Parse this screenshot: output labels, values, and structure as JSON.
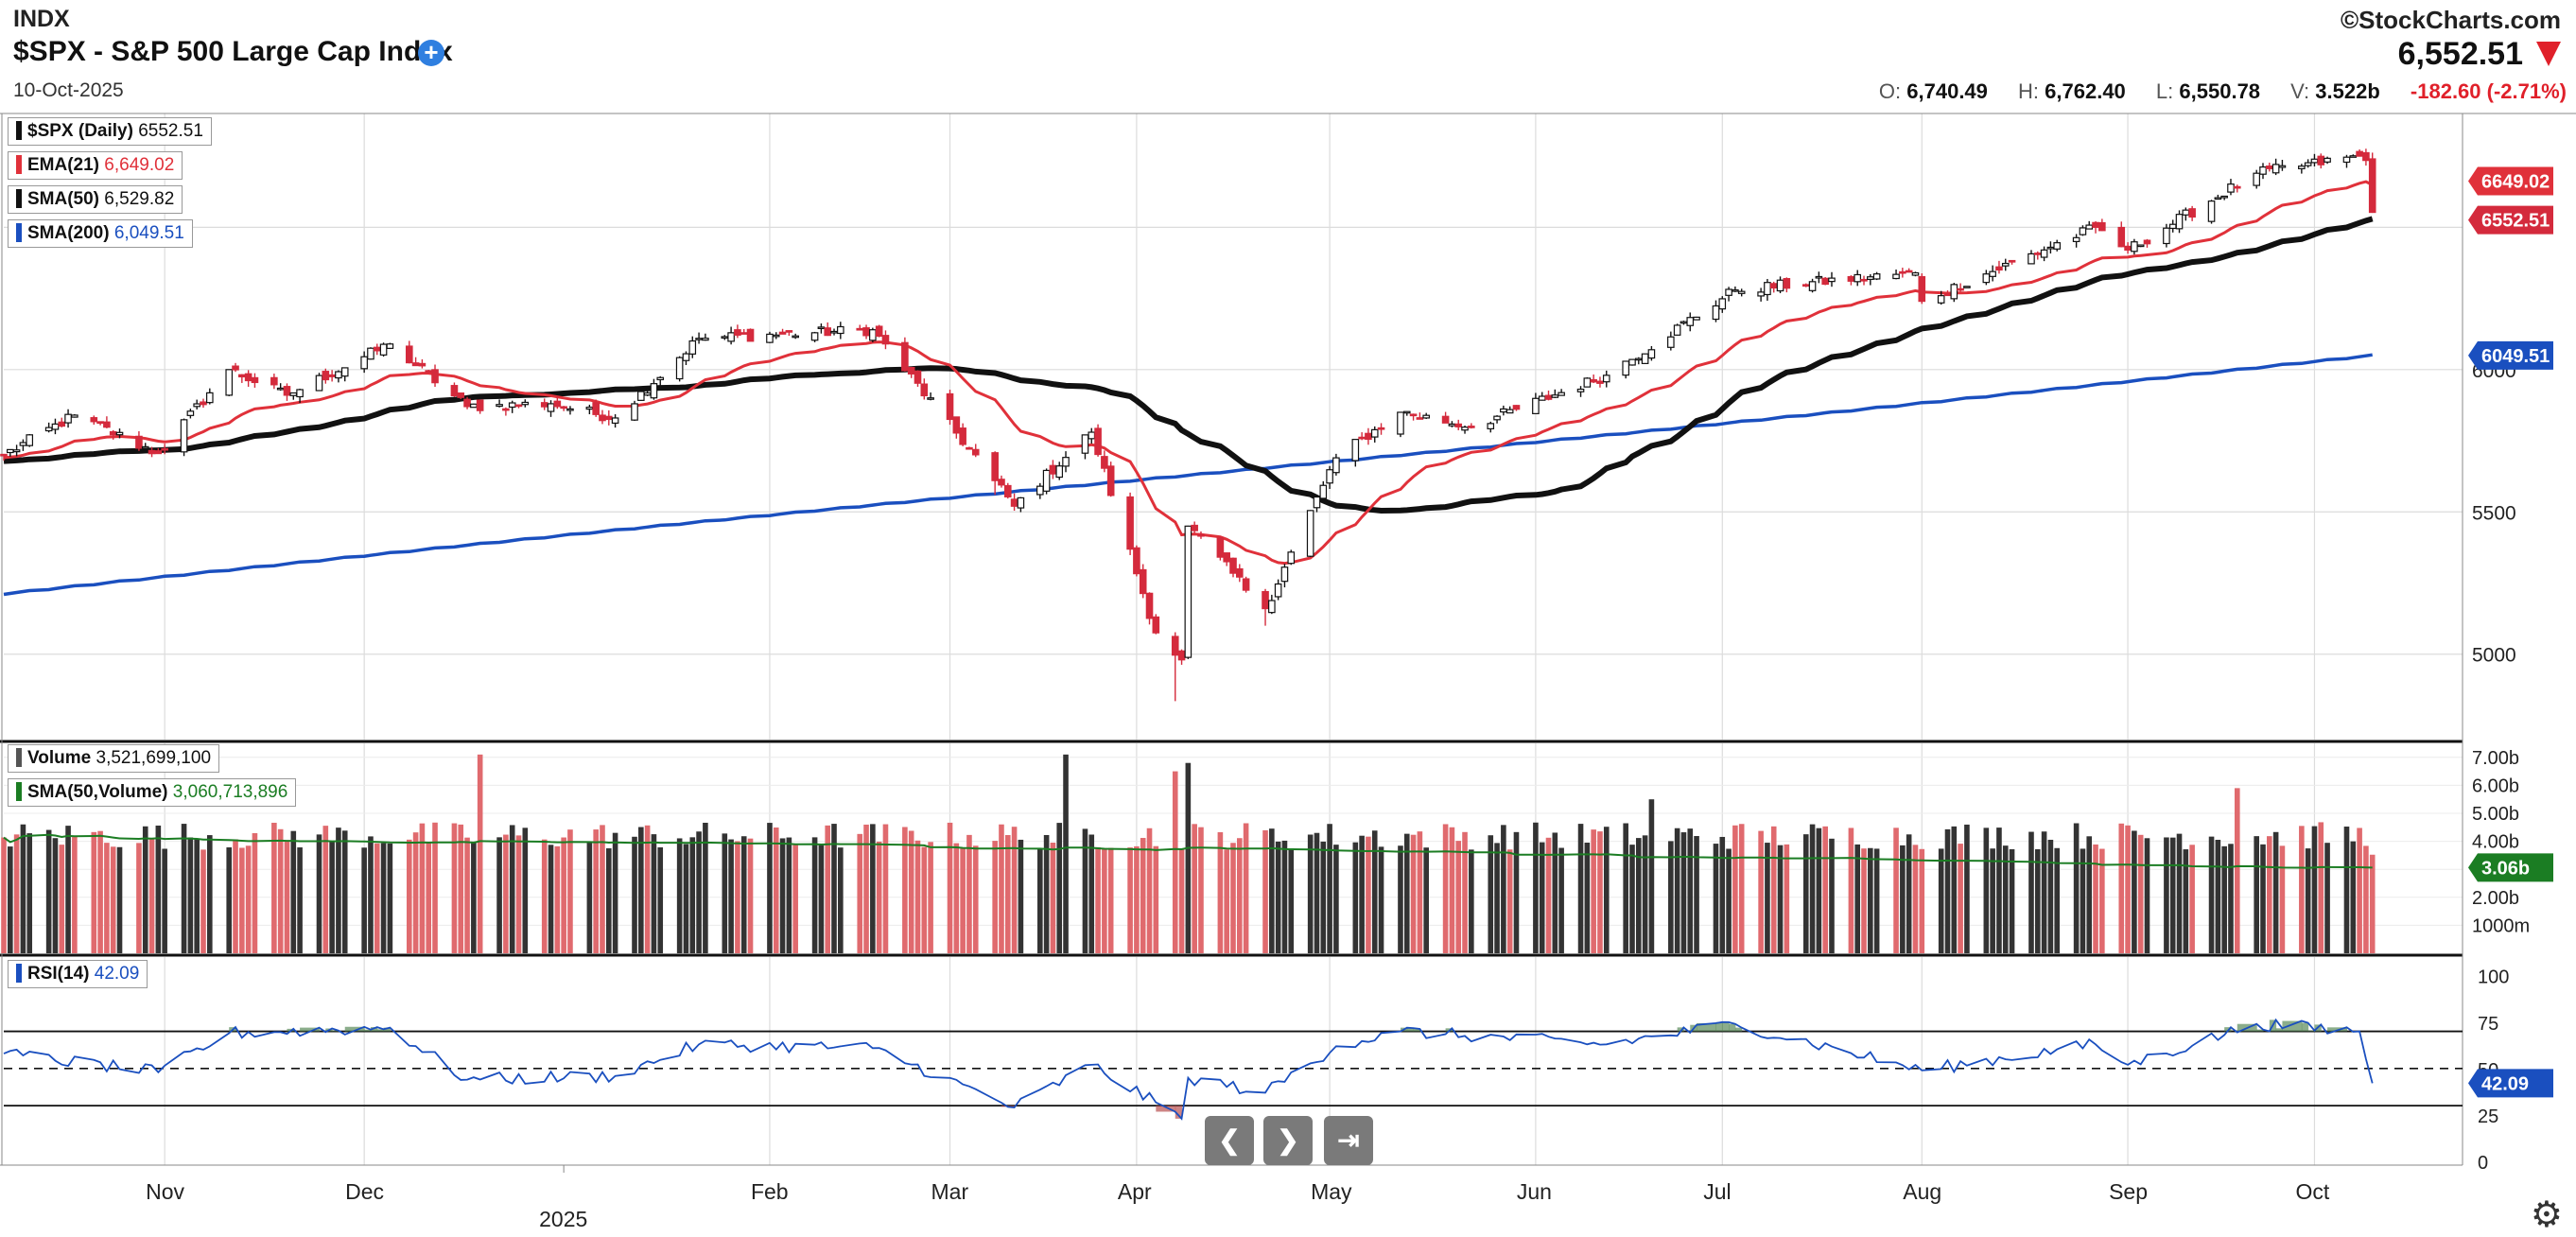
{
  "header": {
    "exchange": "INDX",
    "title": "$SPX - S&P 500 Large Cap Index",
    "add_icon": "plus-circle-icon",
    "date": "10-Oct-2025",
    "brand": "©StockCharts.com",
    "last_price": "6,552.51",
    "direction_icon": "down-triangle-icon",
    "ohlc": {
      "open_label": "O:",
      "open": "6,740.49",
      "high_label": "H:",
      "high": "6,762.40",
      "low_label": "L:",
      "low": "6,550.78",
      "volume_label": "V:",
      "volume": "3.522b",
      "change": "-182.60 (-2.71%)"
    }
  },
  "legends": {
    "price": [
      {
        "label": "$SPX (Daily)",
        "value": "6552.51",
        "color": "#111111"
      },
      {
        "label": "EMA(21)",
        "value": "6,649.02",
        "color": "#e0313a"
      },
      {
        "label": "SMA(50)",
        "value": "6,529.82",
        "color": "#111111"
      },
      {
        "label": "SMA(200)",
        "value": "6,049.51",
        "color": "#1a4fbf"
      }
    ],
    "volume": [
      {
        "label": "Volume",
        "value": "3,521,699,100",
        "color": "#555555"
      },
      {
        "label": "SMA(50,Volume)",
        "value": "3,060,713,896",
        "color": "#1b7d23"
      }
    ],
    "rsi": [
      {
        "label": "RSI(14)",
        "value": "42.09",
        "color": "#1a4fbf"
      }
    ]
  },
  "nav": {
    "prev_icon": "chevron-left-icon",
    "next_icon": "chevron-right-icon",
    "end_icon": "skip-to-end-icon"
  },
  "settings_icon": "gear-icon",
  "colors": {
    "up": "#111111",
    "down": "#d42a3c",
    "ema": "#e0313a",
    "sma50": "#111111",
    "sma200": "#1a4fbf",
    "vol_sma": "#1b7d23",
    "rsi": "#1a4fbf"
  },
  "chart_data": [
    {
      "type": "candlestick",
      "panel": "price",
      "ylim": [
        4700,
        6900
      ],
      "yticks": [
        "5000",
        "5500",
        "6000"
      ],
      "x_labels": [
        "Nov",
        "Dec",
        "2025",
        "Feb",
        "Mar",
        "Apr",
        "May",
        "Jun",
        "Jul",
        "Aug",
        "Sep",
        "Oct"
      ],
      "x_label_dates": [
        "2024-11-01",
        "2024-12-02",
        "2025-01-02",
        "2025-02-03",
        "2025-03-03",
        "2025-04-01",
        "2025-05-01",
        "2025-06-02",
        "2025-07-01",
        "2025-08-01",
        "2025-09-02",
        "2025-10-01"
      ],
      "x_range": [
        "2024-10-07",
        "2025-10-24"
      ],
      "close_anchors": [
        {
          "date": "2024-10-07",
          "close": 5700
        },
        {
          "date": "2024-10-18",
          "close": 5840
        },
        {
          "date": "2024-10-31",
          "close": 5705
        },
        {
          "date": "2024-11-11",
          "close": 6000
        },
        {
          "date": "2024-11-20",
          "close": 5910
        },
        {
          "date": "2024-12-06",
          "close": 6090
        },
        {
          "date": "2024-12-18",
          "close": 5870
        },
        {
          "date": "2024-12-31",
          "close": 5880
        },
        {
          "date": "2025-01-10",
          "close": 5830
        },
        {
          "date": "2025-01-23",
          "close": 6110
        },
        {
          "date": "2025-02-19",
          "close": 6140
        },
        {
          "date": "2025-03-10",
          "close": 5610
        },
        {
          "date": "2025-03-13",
          "close": 5520
        },
        {
          "date": "2025-03-25",
          "close": 5780
        },
        {
          "date": "2025-04-04",
          "close": 5075
        },
        {
          "date": "2025-04-08",
          "close": 4980
        },
        {
          "date": "2025-04-09",
          "close": 5450
        },
        {
          "date": "2025-04-21",
          "close": 5160
        },
        {
          "date": "2025-05-02",
          "close": 5690
        },
        {
          "date": "2025-05-12",
          "close": 5850
        },
        {
          "date": "2025-05-23",
          "close": 5800
        },
        {
          "date": "2025-06-13",
          "close": 5980
        },
        {
          "date": "2025-07-03",
          "close": 6280
        },
        {
          "date": "2025-07-31",
          "close": 6340
        },
        {
          "date": "2025-08-01",
          "close": 6240
        },
        {
          "date": "2025-08-28",
          "close": 6500
        },
        {
          "date": "2025-09-02",
          "close": 6420
        },
        {
          "date": "2025-09-22",
          "close": 6690
        },
        {
          "date": "2025-10-08",
          "close": 6750
        },
        {
          "date": "2025-10-09",
          "close": 6735
        },
        {
          "date": "2025-10-10",
          "close": 6552.51
        }
      ],
      "last_ohlc": {
        "open": 6740.49,
        "high": 6762.4,
        "low": 6550.78,
        "close": 6552.51
      },
      "series": [
        {
          "name": "EMA(21)",
          "last": 6649.02
        },
        {
          "name": "SMA(50)",
          "last": 6529.82
        },
        {
          "name": "SMA(200)",
          "last": 6049.51
        }
      ],
      "badges": [
        {
          "text": "6649.02",
          "value": 6649.02,
          "color": "#e0313a"
        },
        {
          "text": "6552.51",
          "value": 6552.51,
          "color": "#d42a3c"
        },
        {
          "text": "6049.51",
          "value": 6049.51,
          "color": "#1a4fbf"
        }
      ]
    },
    {
      "type": "bar",
      "panel": "volume",
      "ylim": [
        0,
        7500000000
      ],
      "yticks": [
        "1000m",
        "2.00b",
        "3.00b",
        "4.00b",
        "5.00b",
        "6.00b",
        "7.00b"
      ],
      "spikes": [
        {
          "date": "2024-12-20",
          "value": 7100000000
        },
        {
          "date": "2025-03-21",
          "value": 7100000000
        },
        {
          "date": "2025-04-07",
          "value": 6500000000
        },
        {
          "date": "2025-04-09",
          "value": 6800000000
        },
        {
          "date": "2025-06-20",
          "value": 5500000000
        },
        {
          "date": "2025-09-19",
          "value": 5900000000
        }
      ],
      "sma50_last": 3060713896,
      "last_value": 3521699100,
      "badges": [
        {
          "text": "3.06b",
          "value": 3060713896,
          "color": "#1b7d23"
        }
      ]
    },
    {
      "type": "line",
      "panel": "rsi",
      "ylim": [
        -2,
        110
      ],
      "yticks": [
        "0",
        "25",
        "50",
        "75",
        "100"
      ],
      "levels": [
        30,
        50,
        70
      ],
      "anchors": [
        {
          "date": "2024-10-07",
          "value": 58
        },
        {
          "date": "2024-10-31",
          "value": 48
        },
        {
          "date": "2024-11-11",
          "value": 69
        },
        {
          "date": "2024-12-06",
          "value": 72
        },
        {
          "date": "2024-12-18",
          "value": 44
        },
        {
          "date": "2025-01-10",
          "value": 46
        },
        {
          "date": "2025-01-23",
          "value": 63
        },
        {
          "date": "2025-02-19",
          "value": 61
        },
        {
          "date": "2025-03-13",
          "value": 29
        },
        {
          "date": "2025-03-25",
          "value": 52
        },
        {
          "date": "2025-04-08",
          "value": 23
        },
        {
          "date": "2025-04-09",
          "value": 45
        },
        {
          "date": "2025-04-21",
          "value": 37
        },
        {
          "date": "2025-05-02",
          "value": 62
        },
        {
          "date": "2025-05-12",
          "value": 70
        },
        {
          "date": "2025-06-13",
          "value": 63
        },
        {
          "date": "2025-07-03",
          "value": 74
        },
        {
          "date": "2025-08-01",
          "value": 49
        },
        {
          "date": "2025-08-28",
          "value": 63
        },
        {
          "date": "2025-09-02",
          "value": 52
        },
        {
          "date": "2025-09-22",
          "value": 74
        },
        {
          "date": "2025-10-08",
          "value": 70
        },
        {
          "date": "2025-10-10",
          "value": 42.09
        }
      ],
      "badges": [
        {
          "text": "42.09",
          "value": 42.09,
          "color": "#1a4fbf"
        }
      ]
    }
  ]
}
